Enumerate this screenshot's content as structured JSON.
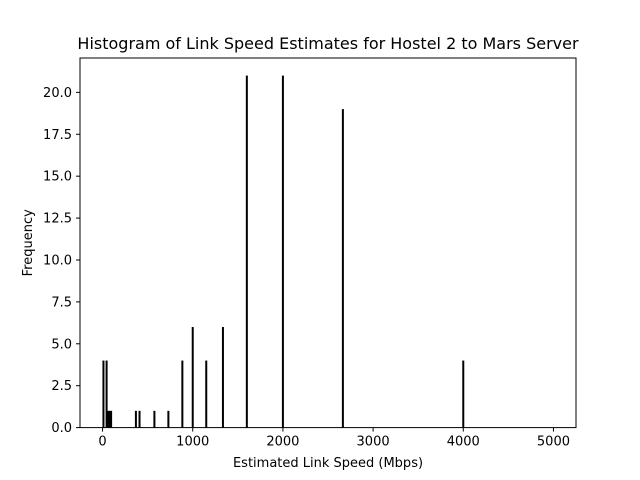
{
  "chart_data": {
    "type": "bar",
    "title": "Histogram of Link Speed Estimates for Hostel 2 to Mars Server",
    "xlabel": "Estimated Link Speed (Mbps)",
    "ylabel": "Frequency",
    "xlim": [
      -250,
      5250
    ],
    "ylim": [
      0,
      22.05
    ],
    "xticks": [
      0,
      1000,
      2000,
      3000,
      4000,
      5000
    ],
    "xtick_labels": [
      "0",
      "1000",
      "2000",
      "3000",
      "4000",
      "5000"
    ],
    "yticks": [
      0.0,
      2.5,
      5.0,
      7.5,
      10.0,
      12.5,
      15.0,
      17.5,
      20.0
    ],
    "ytick_labels": [
      "0.0",
      "2.5",
      "5.0",
      "7.5",
      "10.0",
      "12.5",
      "15.0",
      "17.5",
      "20.0"
    ],
    "grid": false,
    "bar_color": "#000000",
    "bins": [
      {
        "x": 10,
        "count": 4
      },
      {
        "x": 45,
        "count": 4
      },
      {
        "x": 65,
        "count": 1
      },
      {
        "x": 80,
        "count": 1
      },
      {
        "x": 95,
        "count": 1
      },
      {
        "x": 370,
        "count": 1
      },
      {
        "x": 410,
        "count": 1
      },
      {
        "x": 575,
        "count": 1
      },
      {
        "x": 730,
        "count": 1
      },
      {
        "x": 885,
        "count": 4
      },
      {
        "x": 1000,
        "count": 6
      },
      {
        "x": 1150,
        "count": 4
      },
      {
        "x": 1335,
        "count": 6
      },
      {
        "x": 1600,
        "count": 21
      },
      {
        "x": 2000,
        "count": 21
      },
      {
        "x": 2665,
        "count": 19
      },
      {
        "x": 4000,
        "count": 4
      }
    ]
  }
}
